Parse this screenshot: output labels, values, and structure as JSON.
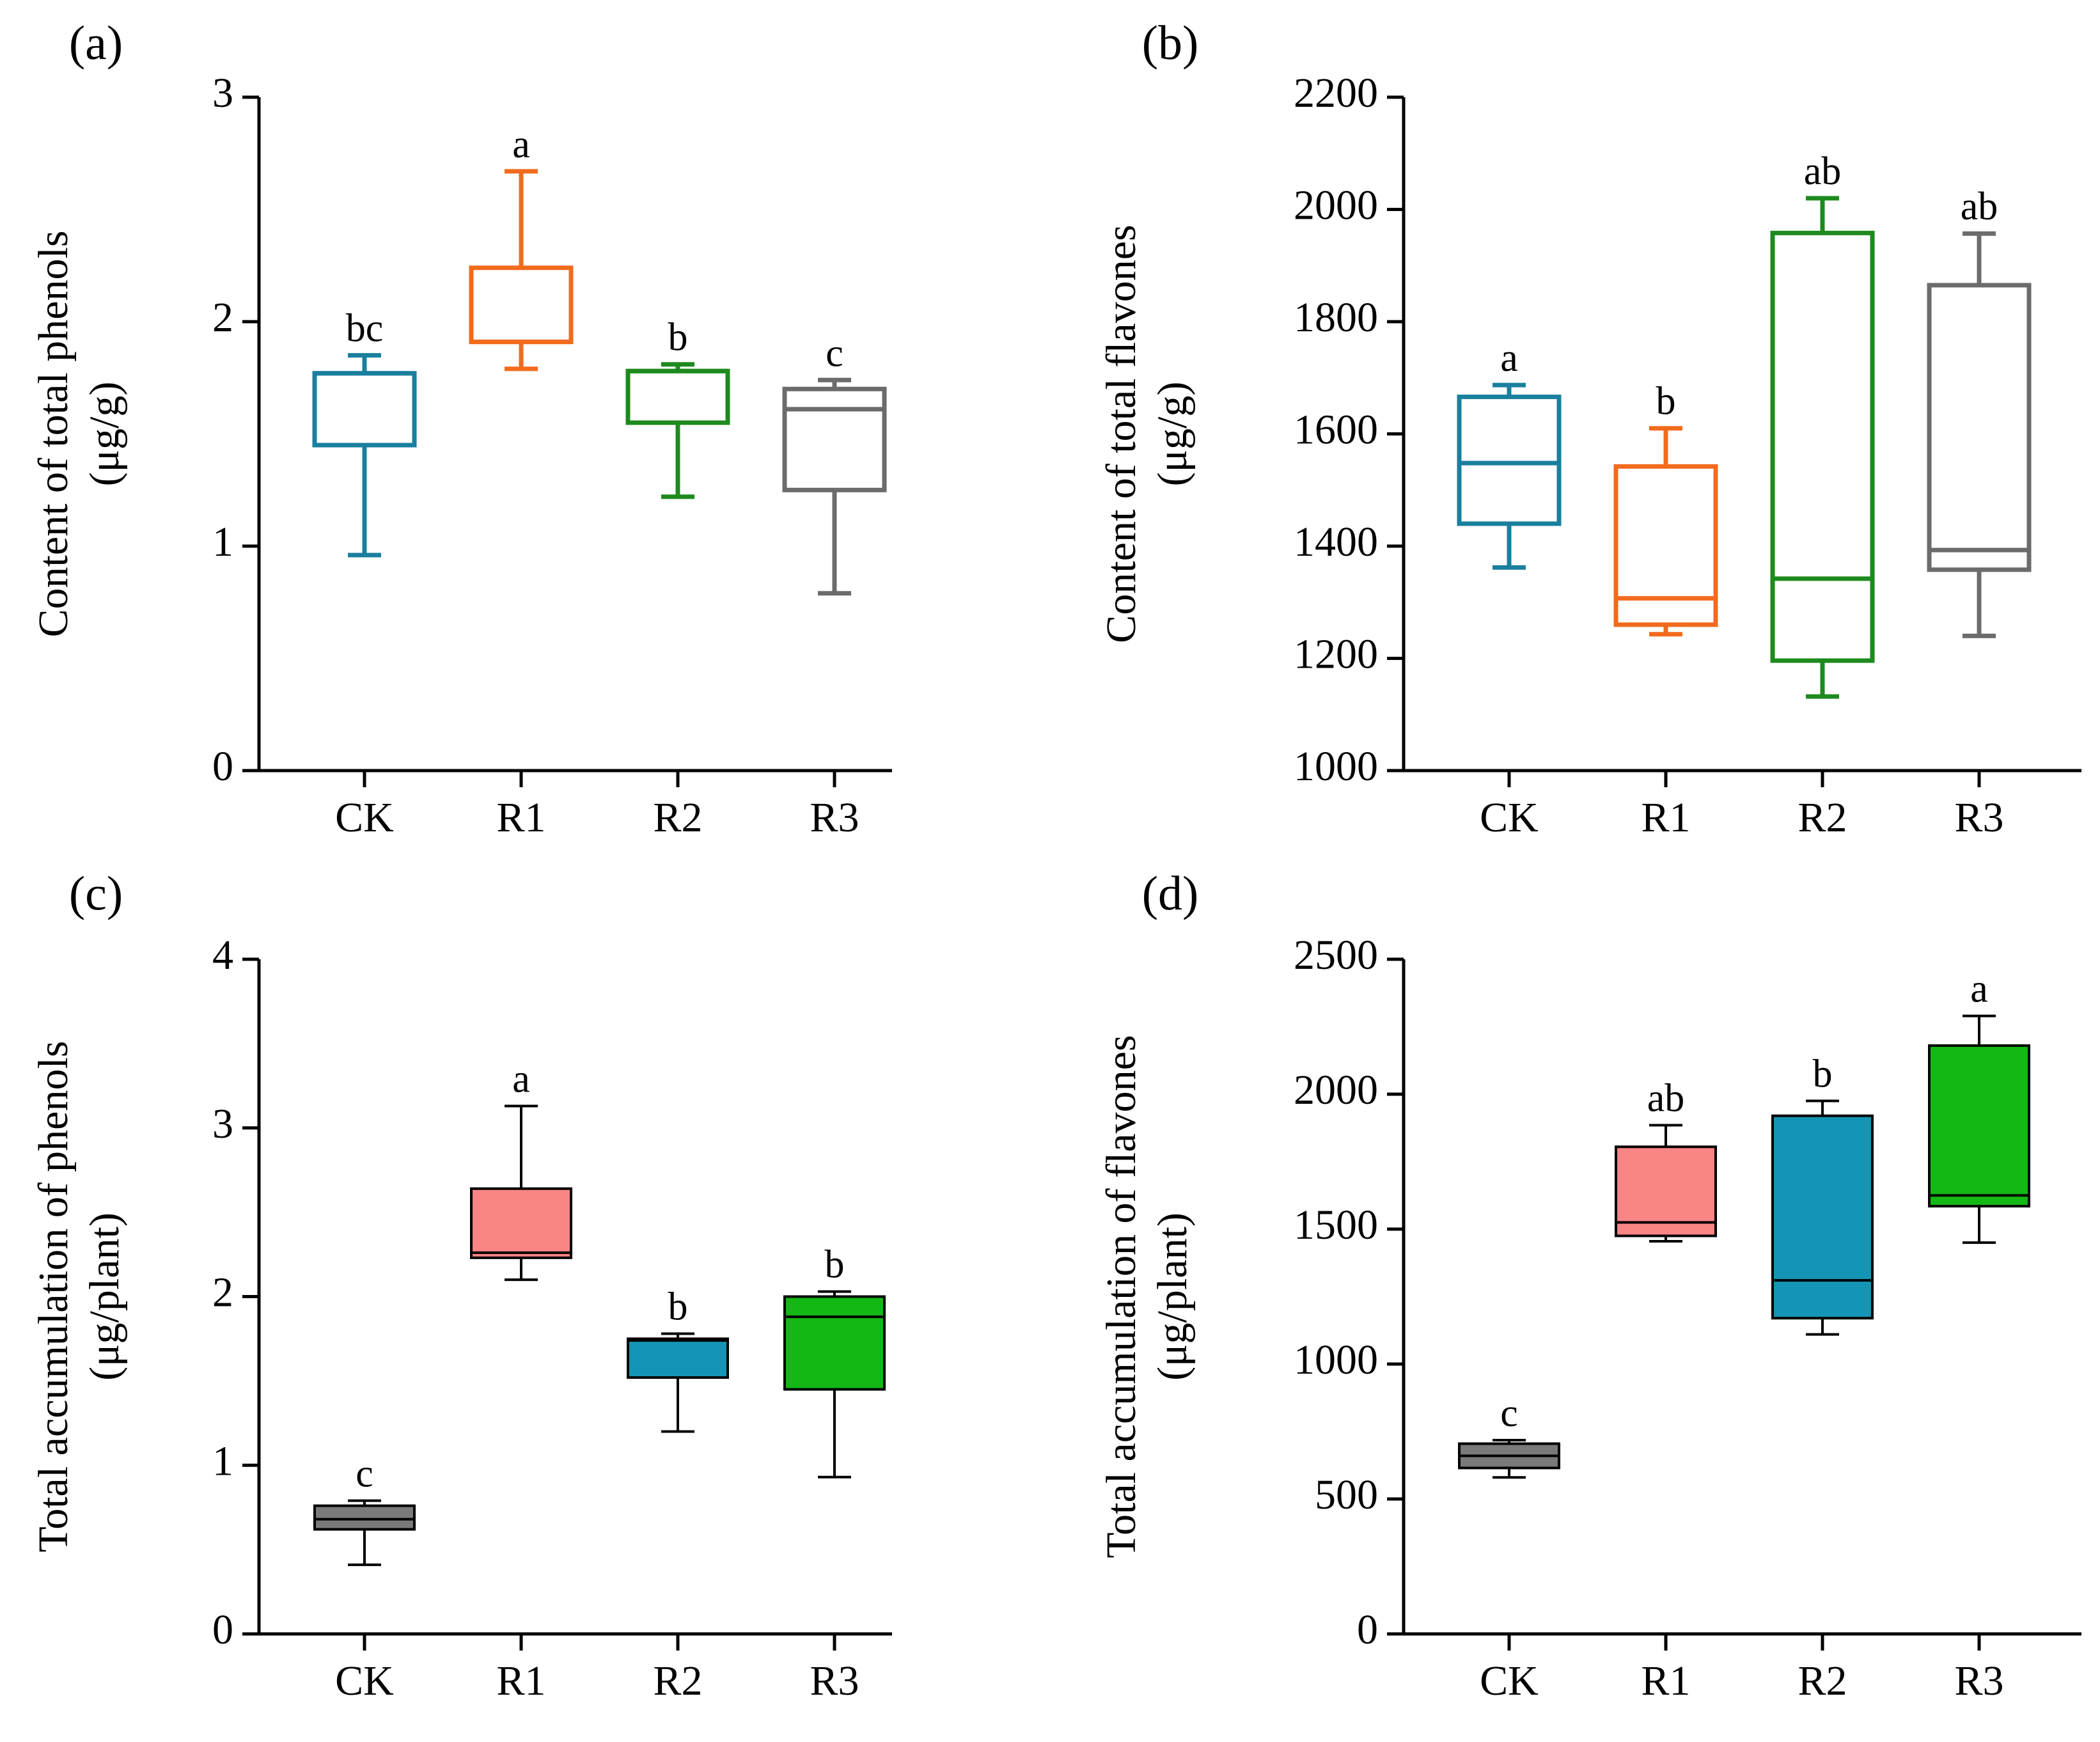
{
  "chart_data": [
    {
      "panel": "(a)",
      "type": "box",
      "style": "outline",
      "ylabel_line1": "Content of total phenols",
      "ylabel_line2": "(μg/g)",
      "ylim": [
        0,
        3
      ],
      "yticks": [
        0,
        1,
        2,
        3
      ],
      "ytick_labels": [
        "0",
        "1",
        "2",
        "3"
      ],
      "categories": [
        "CK",
        "R1",
        "R2",
        "R3"
      ],
      "boxes": [
        {
          "category": "CK",
          "min": 0.96,
          "q1": 1.45,
          "median": 1.77,
          "q3": 1.77,
          "max": 1.85,
          "color": "#1a7f9e",
          "sig": "bc"
        },
        {
          "category": "R1",
          "min": 1.79,
          "q1": 1.91,
          "median": 1.91,
          "q3": 2.24,
          "max": 2.67,
          "color": "#f26b1d",
          "sig": "a"
        },
        {
          "category": "R2",
          "min": 1.22,
          "q1": 1.55,
          "median": 1.78,
          "q3": 1.78,
          "max": 1.81,
          "color": "#1e8a1e",
          "sig": "b"
        },
        {
          "category": "R3",
          "min": 0.79,
          "q1": 1.25,
          "median": 1.61,
          "q3": 1.7,
          "max": 1.74,
          "color": "#6b6b6b",
          "sig": "c"
        }
      ]
    },
    {
      "panel": "(b)",
      "type": "box",
      "style": "outline",
      "ylabel_line1": "Content of total flavones",
      "ylabel_line2": "(μg/g)",
      "ylim": [
        1000,
        2200
      ],
      "yticks": [
        1000,
        1200,
        1400,
        1600,
        1800,
        2000,
        2200
      ],
      "ytick_labels": [
        "1000",
        "1200",
        "1400",
        "1600",
        "1800",
        "2000",
        "2200"
      ],
      "categories": [
        "CK",
        "R1",
        "R2",
        "R3"
      ],
      "boxes": [
        {
          "category": "CK",
          "min": 1362,
          "q1": 1440,
          "median": 1548,
          "q3": 1666,
          "max": 1687,
          "color": "#1a7f9e",
          "sig": "a"
        },
        {
          "category": "R1",
          "min": 1243,
          "q1": 1260,
          "median": 1307,
          "q3": 1542,
          "max": 1610,
          "color": "#f26b1d",
          "sig": "b"
        },
        {
          "category": "R2",
          "min": 1132,
          "q1": 1196,
          "median": 1342,
          "q3": 1958,
          "max": 2020,
          "color": "#1e8a1e",
          "sig": "ab"
        },
        {
          "category": "R3",
          "min": 1240,
          "q1": 1358,
          "median": 1393,
          "q3": 1865,
          "max": 1957,
          "color": "#6b6b6b",
          "sig": "ab"
        }
      ]
    },
    {
      "panel": "(c)",
      "type": "box",
      "style": "filled",
      "ylabel_line1": "Total accumulation of phenols",
      "ylabel_line2": "(μg/plant)",
      "ylim": [
        0,
        4
      ],
      "yticks": [
        0,
        1,
        2,
        3,
        4
      ],
      "ytick_labels": [
        "0",
        "1",
        "2",
        "3",
        "4"
      ],
      "categories": [
        "CK",
        "R1",
        "R2",
        "R3"
      ],
      "boxes": [
        {
          "category": "CK",
          "min": 0.41,
          "q1": 0.62,
          "median": 0.68,
          "q3": 0.76,
          "max": 0.79,
          "color": "#7a7a7a",
          "sig": "c"
        },
        {
          "category": "R1",
          "min": 2.1,
          "q1": 2.23,
          "median": 2.26,
          "q3": 2.64,
          "max": 3.13,
          "color": "#fa8585",
          "sig": "a"
        },
        {
          "category": "R2",
          "min": 1.2,
          "q1": 1.52,
          "median": 1.74,
          "q3": 1.75,
          "max": 1.78,
          "color": "#1595b5",
          "sig": "b"
        },
        {
          "category": "R3",
          "min": 0.93,
          "q1": 1.45,
          "median": 1.88,
          "q3": 2.0,
          "max": 2.03,
          "color": "#14b814",
          "sig": "b"
        }
      ]
    },
    {
      "panel": "(d)",
      "type": "box",
      "style": "filled",
      "ylabel_line1": "Total accumulation of flavones",
      "ylabel_line2": "(μg/plant)",
      "ylim": [
        0,
        2500
      ],
      "yticks": [
        0,
        500,
        1000,
        1500,
        2000,
        2500
      ],
      "ytick_labels": [
        "0",
        "500",
        "1000",
        "1500",
        "2000",
        "2500"
      ],
      "categories": [
        "CK",
        "R1",
        "R2",
        "R3"
      ],
      "boxes": [
        {
          "category": "CK",
          "min": 580,
          "q1": 615,
          "median": 660,
          "q3": 705,
          "max": 718,
          "color": "#7a7a7a",
          "sig": "c"
        },
        {
          "category": "R1",
          "min": 1455,
          "q1": 1475,
          "median": 1525,
          "q3": 1805,
          "max": 1885,
          "color": "#fa8585",
          "sig": "ab"
        },
        {
          "category": "R2",
          "min": 1110,
          "q1": 1170,
          "median": 1310,
          "q3": 1920,
          "max": 1975,
          "color": "#1595b5",
          "sig": "b"
        },
        {
          "category": "R3",
          "min": 1450,
          "q1": 1585,
          "median": 1625,
          "q3": 2180,
          "max": 2290,
          "color": "#14b814",
          "sig": "a"
        }
      ]
    }
  ]
}
